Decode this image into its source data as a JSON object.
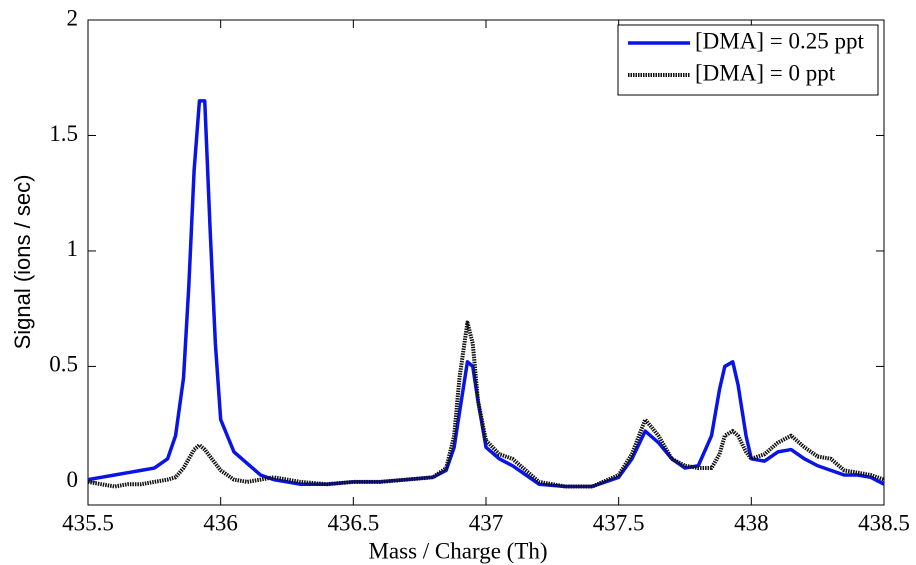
{
  "chart_data": {
    "type": "line",
    "xlabel": "Mass / Charge (Th)",
    "ylabel": "Signal (ions / sec)",
    "x": [
      435.5,
      435.55,
      435.6,
      435.65,
      435.7,
      435.75,
      435.8,
      435.83,
      435.86,
      435.88,
      435.9,
      435.92,
      435.94,
      435.96,
      435.98,
      436.0,
      436.05,
      436.1,
      436.15,
      436.2,
      436.3,
      436.4,
      436.5,
      436.6,
      436.7,
      436.8,
      436.85,
      436.88,
      436.9,
      436.93,
      436.95,
      436.97,
      437.0,
      437.05,
      437.1,
      437.15,
      437.2,
      437.3,
      437.4,
      437.5,
      437.55,
      437.6,
      437.65,
      437.7,
      437.75,
      437.8,
      437.85,
      437.88,
      437.9,
      437.93,
      437.95,
      437.98,
      438.0,
      438.05,
      438.1,
      438.15,
      438.2,
      438.25,
      438.3,
      438.35,
      438.4,
      438.45,
      438.5
    ],
    "series": [
      {
        "name": "[DMA] = 0.25 ppt",
        "color": "#0a14e6",
        "style": "solid",
        "values": [
          0.01,
          0.02,
          0.03,
          0.04,
          0.05,
          0.06,
          0.1,
          0.2,
          0.45,
          0.85,
          1.35,
          1.65,
          1.65,
          1.1,
          0.6,
          0.27,
          0.13,
          0.08,
          0.03,
          0.01,
          -0.01,
          -0.01,
          0,
          0,
          0.01,
          0.02,
          0.05,
          0.15,
          0.3,
          0.52,
          0.5,
          0.35,
          0.15,
          0.1,
          0.07,
          0.03,
          -0.01,
          -0.02,
          -0.02,
          0.02,
          0.1,
          0.22,
          0.17,
          0.1,
          0.06,
          0.07,
          0.2,
          0.4,
          0.5,
          0.52,
          0.42,
          0.2,
          0.1,
          0.09,
          0.13,
          0.14,
          0.1,
          0.07,
          0.05,
          0.03,
          0.03,
          0.02,
          -0.01
        ]
      },
      {
        "name": "[DMA] = 0 ppt",
        "color": "#111111",
        "style": "dotted",
        "values": [
          0,
          -0.01,
          -0.02,
          -0.01,
          -0.01,
          0,
          0.01,
          0.02,
          0.06,
          0.1,
          0.14,
          0.16,
          0.14,
          0.11,
          0.08,
          0.05,
          0.01,
          0,
          0.01,
          0.02,
          0,
          -0.01,
          0,
          0,
          0.01,
          0.02,
          0.06,
          0.2,
          0.45,
          0.69,
          0.6,
          0.35,
          0.18,
          0.12,
          0.1,
          0.05,
          0,
          -0.02,
          -0.02,
          0.03,
          0.12,
          0.27,
          0.2,
          0.1,
          0.07,
          0.06,
          0.06,
          0.12,
          0.2,
          0.22,
          0.2,
          0.13,
          0.1,
          0.12,
          0.17,
          0.2,
          0.15,
          0.11,
          0.1,
          0.05,
          0.04,
          0.03,
          0.01
        ]
      }
    ],
    "xlim": [
      435.5,
      438.5
    ],
    "xticks": [
      435.5,
      436,
      436.5,
      437,
      437.5,
      438,
      438.5
    ],
    "ylim": [
      -0.1,
      2
    ],
    "yticks": [
      0,
      0.5,
      1,
      1.5,
      2
    ],
    "grid": false,
    "legend": "upper right"
  }
}
